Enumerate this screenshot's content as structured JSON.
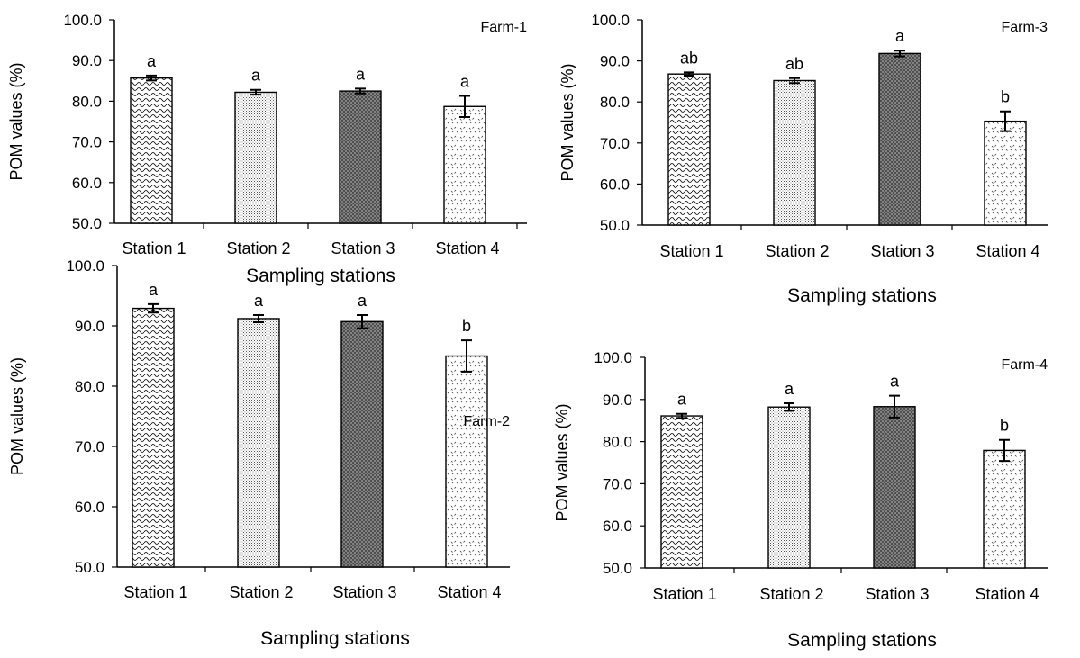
{
  "chart_data": [
    {
      "type": "bar",
      "panel_label": "Farm-1",
      "categories": [
        "Station 1",
        "Station 2",
        "Station 3",
        "Station 4"
      ],
      "values": [
        85.7,
        82.2,
        82.5,
        78.7
      ],
      "errors": [
        0.6,
        0.6,
        0.6,
        2.6
      ],
      "significance": [
        "a",
        "a",
        "a",
        "a"
      ],
      "xlabel": "Sampling stations",
      "ylabel": "POM  values (%)",
      "ylim": [
        50,
        100
      ],
      "yticks": [
        "50.0",
        "60.0",
        "70.0",
        "80.0",
        "90.0",
        "100.0"
      ],
      "grid": false
    },
    {
      "type": "bar",
      "panel_label": "Farm-3",
      "categories": [
        "Station 1",
        "Station 2",
        "Station 3",
        "Station 4"
      ],
      "values": [
        86.8,
        85.2,
        91.8,
        75.3
      ],
      "errors": [
        0.4,
        0.6,
        0.7,
        2.4
      ],
      "significance": [
        "ab",
        "ab",
        "a",
        "b"
      ],
      "xlabel": "Sampling stations",
      "ylabel": "POM values (%)",
      "ylim": [
        50,
        100
      ],
      "yticks": [
        "50.0",
        "60.0",
        "70.0",
        "80.0",
        "90.0",
        "100.0"
      ],
      "grid": false
    },
    {
      "type": "bar",
      "panel_label": "Farm-2",
      "categories": [
        "Station 1",
        "Station 2",
        "Station 3",
        "Station 4"
      ],
      "values": [
        92.9,
        91.2,
        90.7,
        85.0
      ],
      "errors": [
        0.7,
        0.6,
        1.1,
        2.6
      ],
      "significance": [
        "a",
        "a",
        "a",
        "b"
      ],
      "xlabel": "Sampling stations",
      "ylabel": "POM values (%)",
      "ylim": [
        50,
        100
      ],
      "yticks": [
        "50.0",
        "60.0",
        "70.0",
        "80.0",
        "90.0",
        "100.0"
      ],
      "grid": false
    },
    {
      "type": "bar",
      "panel_label": "Farm-4",
      "categories": [
        "Station 1",
        "Station 2",
        "Station 3",
        "Station 4"
      ],
      "values": [
        86.1,
        88.2,
        88.3,
        77.9
      ],
      "errors": [
        0.5,
        0.9,
        2.6,
        2.5
      ],
      "significance": [
        "a",
        "a",
        "a",
        "b"
      ],
      "xlabel": "Sampling stations",
      "ylabel": "POM values (%)",
      "ylim": [
        50,
        100
      ],
      "yticks": [
        "50.0",
        "60.0",
        "70.0",
        "80.0",
        "90.0",
        "100.0"
      ],
      "grid": false
    }
  ]
}
